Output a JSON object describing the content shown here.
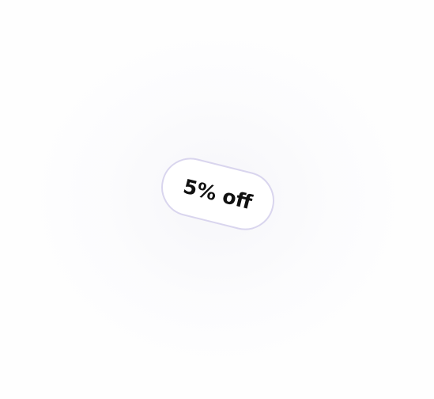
{
  "discount_badge": {
    "label": "5% off"
  },
  "colors": {
    "badge_border": "#d9d5ee",
    "badge_text": "#111111",
    "background": "#fefefe"
  }
}
